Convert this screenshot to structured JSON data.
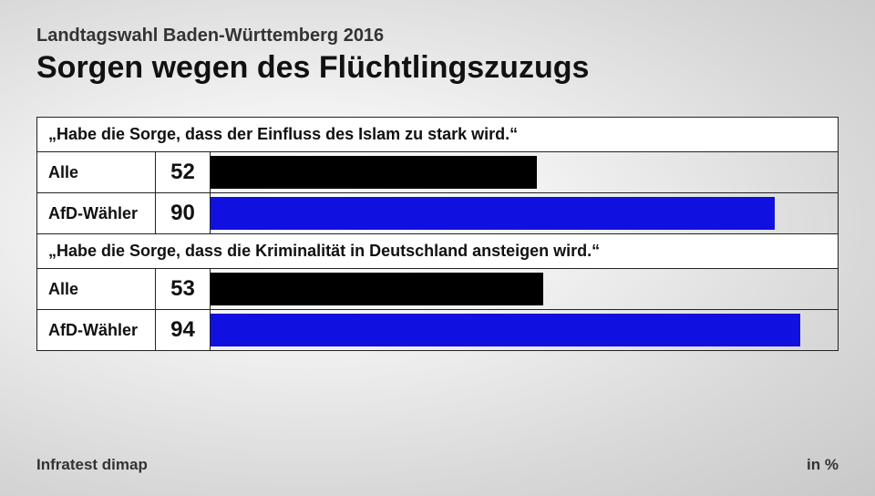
{
  "header": {
    "subtitle": "Landtagswahl Baden-Württemberg 2016",
    "title": "Sorgen wegen des Flüchtlingszuzugs"
  },
  "chart": {
    "type": "bar",
    "xmax": 100,
    "track_background": "transparent",
    "border_color": "#222222",
    "groups": [
      {
        "header": "„Habe die Sorge, dass der Einfluss des Islam zu stark wird.“",
        "rows": [
          {
            "label": "Alle",
            "value": 52,
            "color": "#000000"
          },
          {
            "label": "AfD-Wähler",
            "value": 90,
            "color": "#1010e0"
          }
        ]
      },
      {
        "header": "„Habe die Sorge, dass die Kriminalität in Deutschland ansteigen wird.“",
        "rows": [
          {
            "label": "Alle",
            "value": 53,
            "color": "#000000"
          },
          {
            "label": "AfD-Wähler",
            "value": 94,
            "color": "#1010e0"
          }
        ]
      }
    ]
  },
  "footer": {
    "source": "Infratest dimap",
    "unit": "in %"
  },
  "styling": {
    "title_fontsize": 34,
    "subtitle_fontsize": 20,
    "group_header_fontsize": 18,
    "label_fontsize": 18,
    "value_fontsize": 24,
    "footer_fontsize": 17,
    "bar_row_height": 44,
    "label_cell_width": 130,
    "value_cell_width": 60,
    "cell_background": "#ffffff",
    "text_color": "#111111"
  }
}
